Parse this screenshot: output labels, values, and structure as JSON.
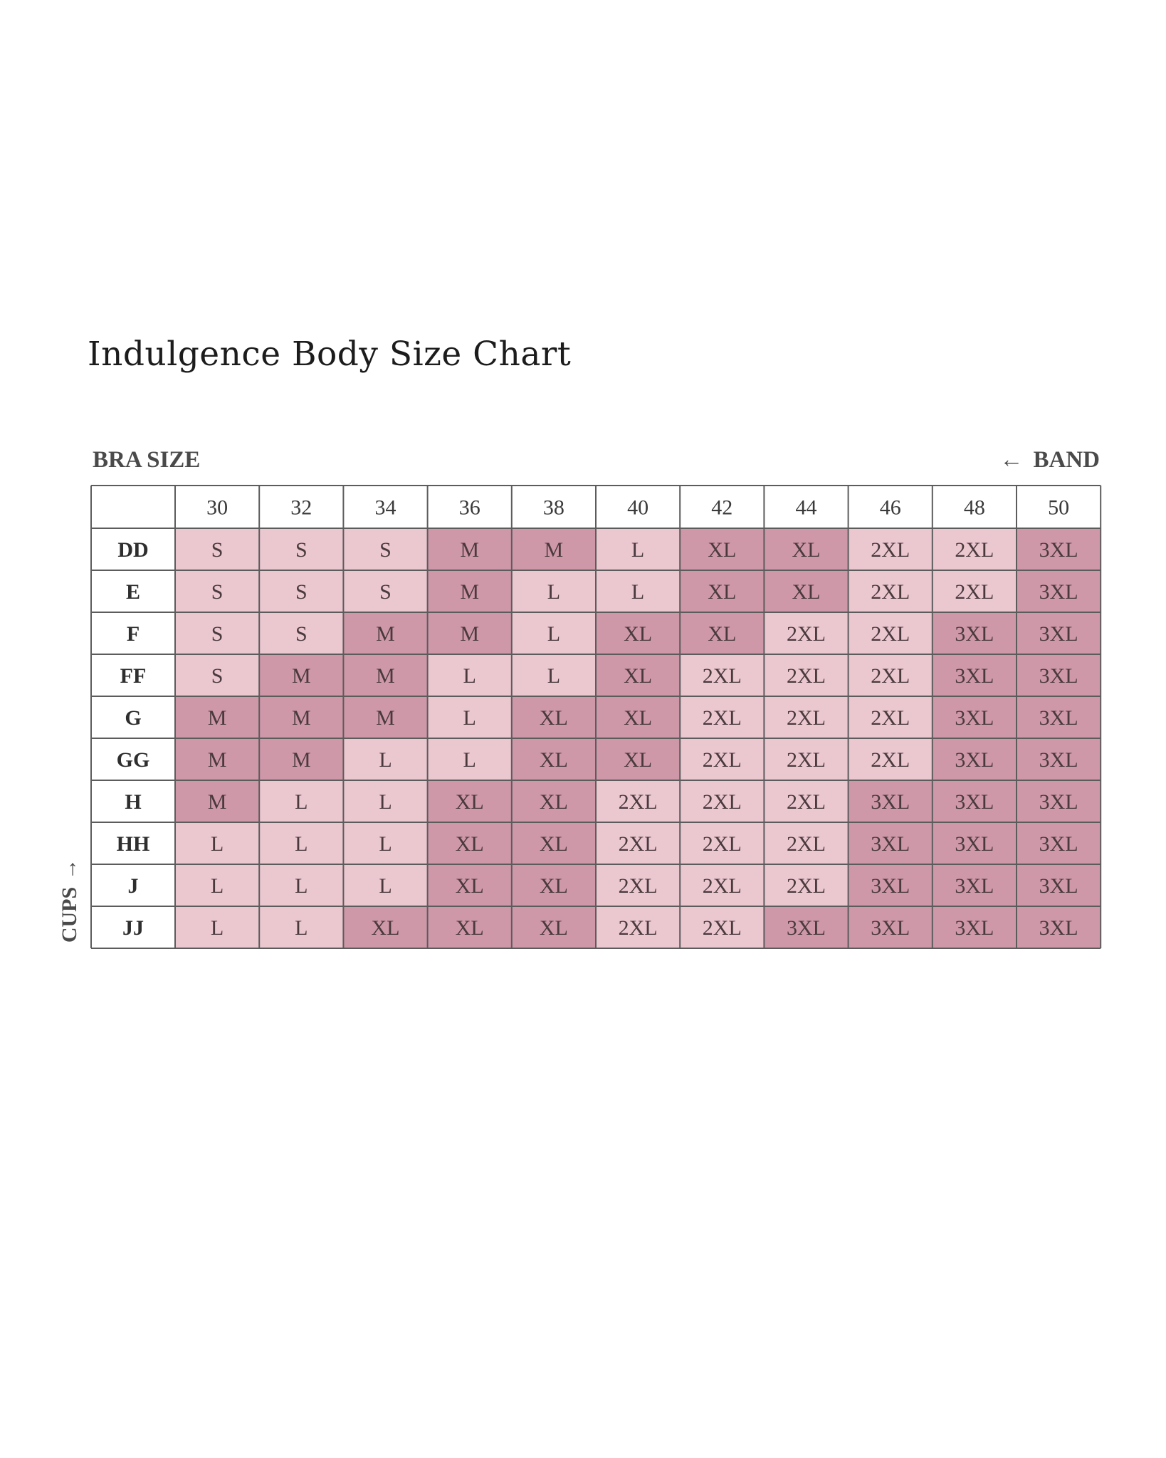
{
  "title": "Indulgence Body Size Chart",
  "labels": {
    "bra_size": "BRA SIZE",
    "band": "BAND",
    "band_arrow": "←",
    "cups": "CUPS",
    "cups_arrow": "→"
  },
  "colors": {
    "light": "#ebc7d0",
    "dark": "#cf98a9",
    "header": "#ffffff",
    "border": "#5c5c5c"
  },
  "chart_data": {
    "type": "table",
    "band_sizes": [
      "30",
      "32",
      "34",
      "36",
      "38",
      "40",
      "42",
      "44",
      "46",
      "48",
      "50"
    ],
    "cup_sizes": [
      "DD",
      "E",
      "F",
      "FF",
      "G",
      "GG",
      "H",
      "HH",
      "J",
      "JJ"
    ],
    "values": [
      [
        "S",
        "S",
        "S",
        "M",
        "M",
        "L",
        "XL",
        "XL",
        "2XL",
        "2XL",
        "3XL"
      ],
      [
        "S",
        "S",
        "S",
        "M",
        "L",
        "L",
        "XL",
        "XL",
        "2XL",
        "2XL",
        "3XL"
      ],
      [
        "S",
        "S",
        "M",
        "M",
        "L",
        "XL",
        "XL",
        "2XL",
        "2XL",
        "3XL",
        "3XL"
      ],
      [
        "S",
        "M",
        "M",
        "L",
        "L",
        "XL",
        "2XL",
        "2XL",
        "2XL",
        "3XL",
        "3XL"
      ],
      [
        "M",
        "M",
        "M",
        "L",
        "XL",
        "XL",
        "2XL",
        "2XL",
        "2XL",
        "3XL",
        "3XL"
      ],
      [
        "M",
        "M",
        "L",
        "L",
        "XL",
        "XL",
        "2XL",
        "2XL",
        "2XL",
        "3XL",
        "3XL"
      ],
      [
        "M",
        "L",
        "L",
        "XL",
        "XL",
        "2XL",
        "2XL",
        "2XL",
        "3XL",
        "3XL",
        "3XL"
      ],
      [
        "L",
        "L",
        "L",
        "XL",
        "XL",
        "2XL",
        "2XL",
        "2XL",
        "3XL",
        "3XL",
        "3XL"
      ],
      [
        "L",
        "L",
        "L",
        "XL",
        "XL",
        "2XL",
        "2XL",
        "2XL",
        "3XL",
        "3XL",
        "3XL"
      ],
      [
        "L",
        "L",
        "XL",
        "XL",
        "XL",
        "2XL",
        "2XL",
        "3XL",
        "3XL",
        "3XL",
        "3XL"
      ]
    ],
    "shade": [
      [
        "light",
        "light",
        "light",
        "dark",
        "dark",
        "light",
        "dark",
        "dark",
        "light",
        "light",
        "dark"
      ],
      [
        "light",
        "light",
        "light",
        "dark",
        "light",
        "light",
        "dark",
        "dark",
        "light",
        "light",
        "dark"
      ],
      [
        "light",
        "light",
        "dark",
        "dark",
        "light",
        "dark",
        "dark",
        "light",
        "light",
        "dark",
        "dark"
      ],
      [
        "light",
        "dark",
        "dark",
        "light",
        "light",
        "dark",
        "light",
        "light",
        "light",
        "dark",
        "dark"
      ],
      [
        "dark",
        "dark",
        "dark",
        "light",
        "dark",
        "dark",
        "light",
        "light",
        "light",
        "dark",
        "dark"
      ],
      [
        "dark",
        "dark",
        "light",
        "light",
        "dark",
        "dark",
        "light",
        "light",
        "light",
        "dark",
        "dark"
      ],
      [
        "dark",
        "light",
        "light",
        "dark",
        "dark",
        "light",
        "light",
        "light",
        "dark",
        "dark",
        "dark"
      ],
      [
        "light",
        "light",
        "light",
        "dark",
        "dark",
        "light",
        "light",
        "light",
        "dark",
        "dark",
        "dark"
      ],
      [
        "light",
        "light",
        "light",
        "dark",
        "dark",
        "light",
        "light",
        "light",
        "dark",
        "dark",
        "dark"
      ],
      [
        "light",
        "light",
        "dark",
        "dark",
        "dark",
        "light",
        "light",
        "dark",
        "dark",
        "dark",
        "dark"
      ]
    ]
  }
}
